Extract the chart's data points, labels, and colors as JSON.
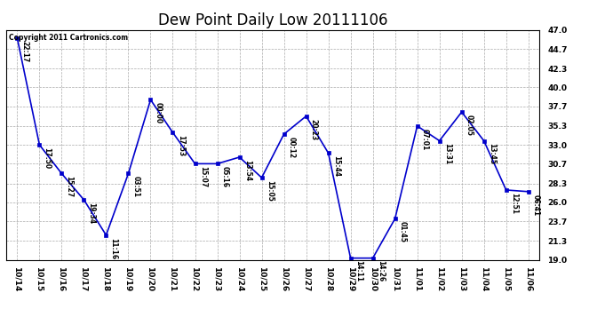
{
  "title": "Dew Point Daily Low 20111106",
  "copyright": "Copyright 2011 Cartronics.com",
  "x_labels": [
    "10/14",
    "10/15",
    "10/16",
    "10/17",
    "10/18",
    "10/19",
    "10/20",
    "10/21",
    "10/22",
    "10/23",
    "10/24",
    "10/25",
    "10/26",
    "10/27",
    "10/28",
    "10/29",
    "10/30",
    "10/31",
    "11/01",
    "11/02",
    "11/03",
    "11/04",
    "11/05",
    "11/06"
  ],
  "y_values": [
    46.0,
    33.0,
    29.5,
    26.3,
    22.0,
    29.5,
    38.5,
    34.5,
    30.7,
    30.7,
    31.5,
    29.0,
    34.3,
    36.5,
    32.0,
    19.2,
    19.2,
    24.0,
    35.3,
    33.5,
    37.0,
    33.5,
    27.5,
    27.3
  ],
  "time_labels": [
    "22:17",
    "17:50",
    "15:27",
    "19:34",
    "11:16",
    "03:51",
    "00:00",
    "17:53",
    "15:07",
    "05:16",
    "13:54",
    "15:05",
    "00:12",
    "20:23",
    "15:44",
    "14:11",
    "14:26",
    "01:45",
    "07:01",
    "13:31",
    "02:05",
    "13:45",
    "12:51",
    "06:41"
  ],
  "line_color": "#0000cc",
  "marker_color": "#0000cc",
  "background_color": "#ffffff",
  "grid_color": "#aaaaaa",
  "title_fontsize": 12,
  "ylim_min": 19.0,
  "ylim_max": 47.0,
  "y_ticks": [
    19.0,
    21.3,
    23.7,
    26.0,
    28.3,
    30.7,
    33.0,
    35.3,
    37.7,
    40.0,
    42.3,
    44.7,
    47.0
  ]
}
